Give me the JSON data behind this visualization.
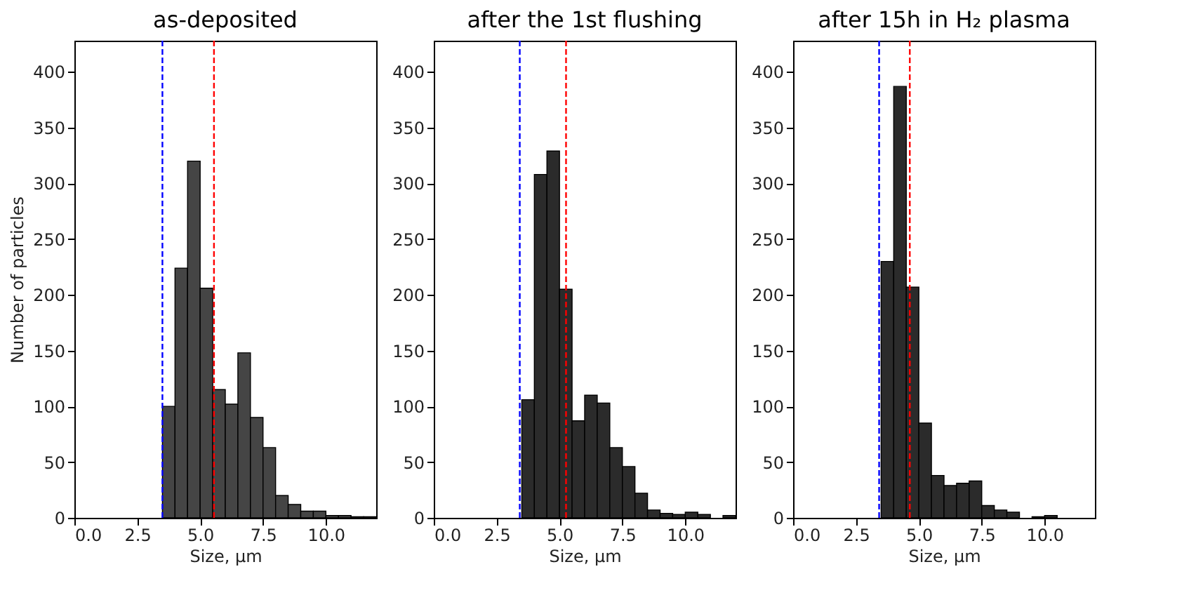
{
  "chart_data": [
    {
      "type": "histogram",
      "title": "as-deposited",
      "xlabel": "Size, μm",
      "ylabel": "Number of particles",
      "color": "#454545",
      "bins": [
        3.5,
        4,
        4.5,
        5,
        5.5,
        6,
        6.5,
        7,
        7.5,
        8,
        8.5,
        9,
        9.5,
        10,
        10.5,
        11,
        11.5,
        12
      ],
      "values": [
        100,
        224,
        320,
        206,
        115,
        102,
        148,
        90,
        63,
        20,
        12,
        6,
        6,
        2,
        2,
        1,
        1
      ],
      "xlim": [
        0,
        12
      ],
      "xticks": [
        {
          "value": 0,
          "label": "0.0"
        },
        {
          "value": 2.5,
          "label": "2.5"
        },
        {
          "value": 5,
          "label": "5.0"
        },
        {
          "value": 7.5,
          "label": "7.5"
        },
        {
          "value": 10,
          "label": "10.0"
        }
      ],
      "ylim": [
        0,
        428
      ],
      "yticks": [
        0,
        50,
        100,
        150,
        200,
        250,
        300,
        350,
        400
      ],
      "grid": false,
      "ref_lines": [
        {
          "axis": "x",
          "value": 3.5,
          "color": "#0000ff",
          "line_style": "dashed"
        },
        {
          "axis": "x",
          "value": 5.55,
          "color": "#ff0000",
          "line_style": "dashed"
        }
      ]
    },
    {
      "type": "histogram",
      "title": "after the 1st flushing",
      "xlabel": "Size, μm",
      "color": "#2b2b2b",
      "bins": [
        3.5,
        4,
        4.5,
        5,
        5.5,
        6,
        6.5,
        7,
        7.5,
        8,
        8.5,
        9,
        9.5,
        10,
        10.5,
        11,
        11.5,
        12
      ],
      "values": [
        106,
        308,
        329,
        205,
        87,
        110,
        103,
        63,
        46,
        22,
        7,
        4,
        3,
        5,
        3,
        0,
        2
      ],
      "xlim": [
        0,
        12
      ],
      "xticks": [
        {
          "value": 0,
          "label": "0.0"
        },
        {
          "value": 2.5,
          "label": "2.5"
        },
        {
          "value": 5,
          "label": "5.0"
        },
        {
          "value": 7.5,
          "label": "7.5"
        },
        {
          "value": 10,
          "label": "10.0"
        }
      ],
      "ylim": [
        0,
        428
      ],
      "yticks": [
        0,
        50,
        100,
        150,
        200,
        250,
        300,
        350,
        400
      ],
      "grid": false,
      "ref_lines": [
        {
          "axis": "x",
          "value": 3.42,
          "color": "#0000ff",
          "line_style": "dashed"
        },
        {
          "axis": "x",
          "value": 5.26,
          "color": "#ff0000",
          "line_style": "dashed"
        }
      ]
    },
    {
      "type": "histogram",
      "title": "after 15h in H₂ plasma",
      "xlabel": "Size, μm",
      "color": "#2b2b2b",
      "bins": [
        3.5,
        4,
        4.5,
        5,
        5.5,
        6,
        6.5,
        7,
        7.5,
        8,
        8.5,
        9,
        9.5,
        10,
        10.5
      ],
      "values": [
        230,
        387,
        207,
        85,
        38,
        29,
        31,
        33,
        11,
        7,
        5,
        0,
        1,
        2
      ],
      "xlim": [
        0,
        12
      ],
      "xticks": [
        {
          "value": 0,
          "label": "0.0"
        },
        {
          "value": 2.5,
          "label": "2.5"
        },
        {
          "value": 5,
          "label": "5.0"
        },
        {
          "value": 7.5,
          "label": "7.5"
        },
        {
          "value": 10,
          "label": "10.0"
        }
      ],
      "ylim": [
        0,
        428
      ],
      "yticks": [
        0,
        50,
        100,
        150,
        200,
        250,
        300,
        350,
        400
      ],
      "grid": false,
      "ref_lines": [
        {
          "axis": "x",
          "value": 3.42,
          "color": "#0000ff",
          "line_style": "dashed"
        },
        {
          "axis": "x",
          "value": 4.64,
          "color": "#ff0000",
          "line_style": "dashed"
        }
      ]
    }
  ]
}
